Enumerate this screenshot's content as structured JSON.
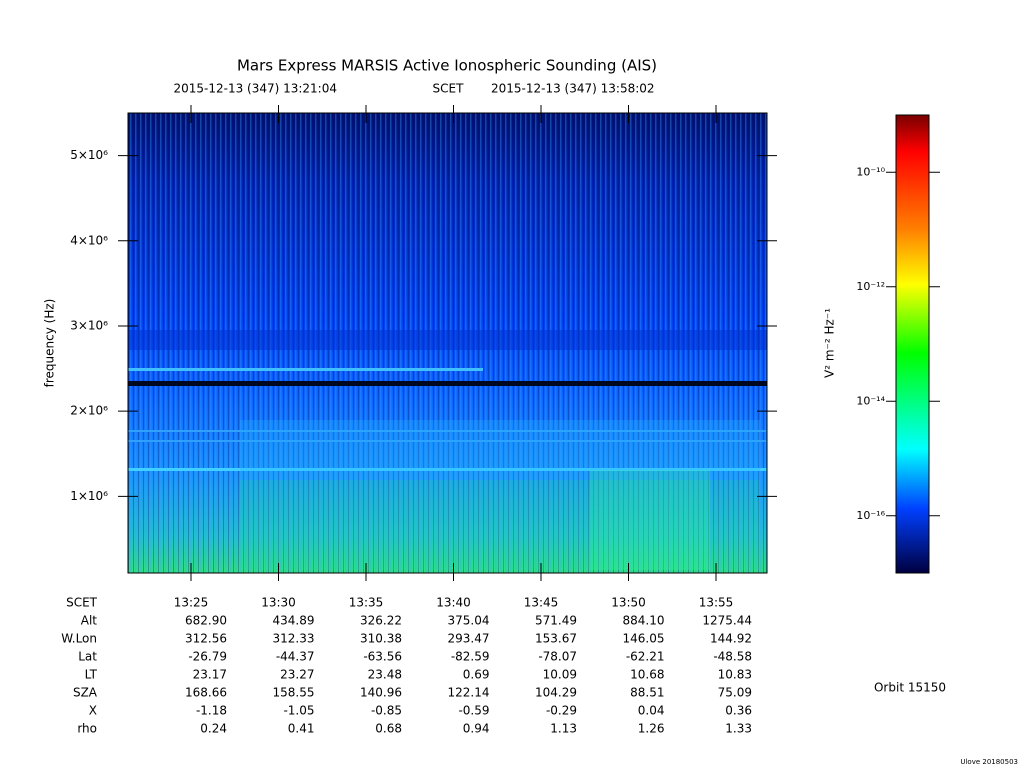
{
  "chart_data": {
    "type": "spectrogram",
    "title": "Mars Express MARSIS Active Ionospheric Sounding (AIS)",
    "start_time": "2015-12-13 (347) 13:21:04",
    "time_system": "SCET",
    "end_time": "2015-12-13 (347) 13:58:02",
    "ylabel": "frequency (Hz)",
    "ylim": [
      100000,
      5500000
    ],
    "yticks": [
      {
        "value": 1000000,
        "label": "1×10⁶"
      },
      {
        "value": 2000000,
        "label": "2×10⁶"
      },
      {
        "value": 3000000,
        "label": "3×10⁶"
      },
      {
        "value": 4000000,
        "label": "4×10⁶"
      },
      {
        "value": 5000000,
        "label": "5×10⁶"
      }
    ],
    "colorbar": {
      "label": "V² m⁻² Hz⁻¹",
      "log": true,
      "clim": [
        1e-17,
        1e-09
      ],
      "ticks": [
        {
          "value": 1e-10,
          "label": "10⁻¹⁰"
        },
        {
          "value": 1e-12,
          "label": "10⁻¹²"
        },
        {
          "value": 1e-14,
          "label": "10⁻¹⁴"
        },
        {
          "value": 1e-16,
          "label": "10⁻¹⁶"
        }
      ]
    },
    "ephemeris": {
      "rows": [
        [
          "SCET",
          "13:25",
          "13:30",
          "13:35",
          "13:40",
          "13:45",
          "13:50",
          "13:55"
        ],
        [
          "Alt",
          "682.90",
          "434.89",
          "326.22",
          "375.04",
          "571.49",
          "884.10",
          "1275.44"
        ],
        [
          "W.Lon",
          "312.56",
          "312.33",
          "310.38",
          "293.47",
          "153.67",
          "146.05",
          "144.92"
        ],
        [
          "Lat",
          "-26.79",
          "-44.37",
          "-63.56",
          "-82.59",
          "-78.07",
          "-62.21",
          "-48.58"
        ],
        [
          "LT",
          "23.17",
          "23.27",
          "23.48",
          "0.69",
          "10.09",
          "10.68",
          "10.83"
        ],
        [
          "SZA",
          "168.66",
          "158.55",
          "140.96",
          "122.14",
          "104.29",
          "88.51",
          "75.09"
        ],
        [
          "X",
          "-1.18",
          "-1.05",
          "-0.85",
          "-0.59",
          "-0.29",
          "0.04",
          "0.36"
        ],
        [
          "rho",
          "0.24",
          "0.41",
          "0.68",
          "0.94",
          "1.13",
          "1.26",
          "1.33"
        ]
      ]
    },
    "orbit": "Orbit 15150",
    "footer": "Ulove 20180503"
  }
}
